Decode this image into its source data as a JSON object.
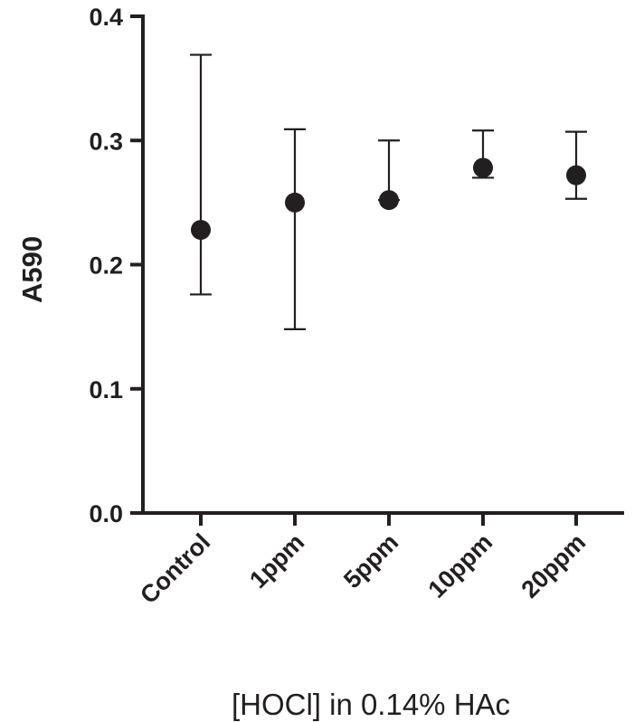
{
  "chart_data": {
    "type": "scatter",
    "title": "",
    "ylabel": "A590",
    "xlabel": "[HOCl] in 0.14% HAc",
    "ylim": [
      0,
      0.4
    ],
    "yticks": [
      0.0,
      0.1,
      0.2,
      0.3,
      0.4
    ],
    "ytick_labels": [
      "0.0",
      "0.1",
      "0.2",
      "0.3",
      "0.4"
    ],
    "categories": [
      "Control",
      "1ppm",
      "5ppm",
      "10ppm",
      "20ppm"
    ],
    "series": [
      {
        "values": [
          0.228,
          0.25,
          0.252,
          0.278,
          0.272
        ],
        "error_low": [
          0.176,
          0.148,
          0.252,
          0.27,
          0.253
        ],
        "error_high": [
          0.369,
          0.309,
          0.3,
          0.308,
          0.307
        ]
      }
    ],
    "grid": false,
    "legend": "none",
    "colors": {
      "marker": "#231f20",
      "axis": "#231f20"
    }
  }
}
